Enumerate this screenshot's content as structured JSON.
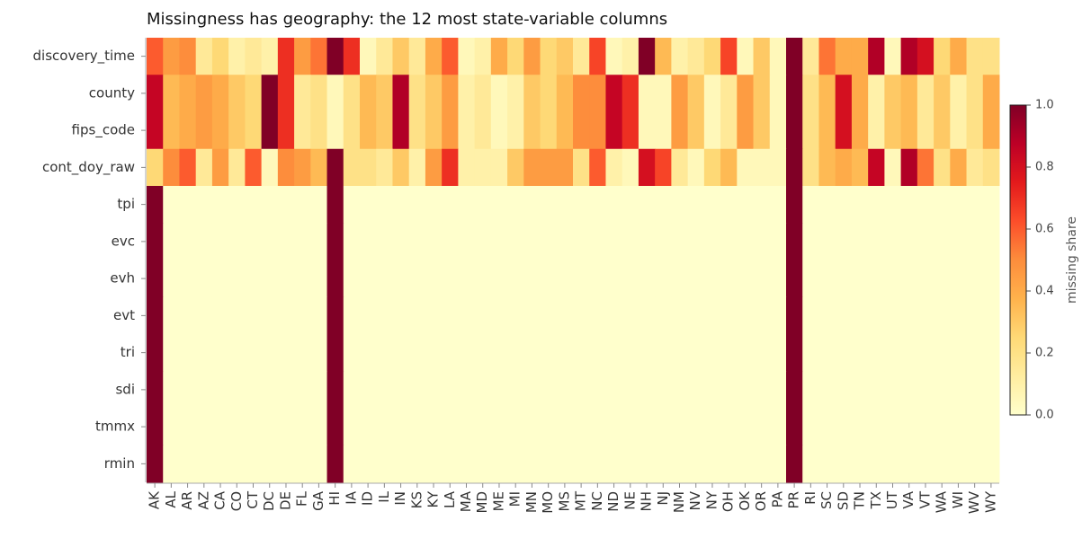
{
  "chart_data": {
    "type": "heatmap",
    "title": "Missingness has geography: the 12 most state-variable columns",
    "categories": [
      "AK",
      "AL",
      "AR",
      "AZ",
      "CA",
      "CO",
      "CT",
      "DC",
      "DE",
      "FL",
      "GA",
      "HI",
      "IA",
      "ID",
      "IL",
      "IN",
      "KS",
      "KY",
      "LA",
      "MA",
      "MD",
      "ME",
      "MI",
      "MN",
      "MO",
      "MS",
      "MT",
      "NC",
      "ND",
      "NE",
      "NH",
      "NJ",
      "NM",
      "NV",
      "NY",
      "OH",
      "OK",
      "OR",
      "PA",
      "PR",
      "RI",
      "SC",
      "SD",
      "TN",
      "TX",
      "UT",
      "VA",
      "VT",
      "WA",
      "WI",
      "WV",
      "WY"
    ],
    "rows": [
      "discovery_time",
      "county",
      "fips_code",
      "cont_doy_raw",
      "tpi",
      "evc",
      "evh",
      "evt",
      "tri",
      "sdi",
      "tmmx",
      "rmin"
    ],
    "values": [
      [
        0.6,
        0.45,
        0.5,
        0.15,
        0.25,
        0.1,
        0.15,
        0.1,
        0.7,
        0.45,
        0.55,
        1.0,
        0.7,
        0.05,
        0.15,
        0.3,
        0.15,
        0.4,
        0.6,
        0.05,
        0.1,
        0.4,
        0.25,
        0.45,
        0.25,
        0.3,
        0.15,
        0.65,
        0.05,
        0.1,
        1.0,
        0.35,
        0.1,
        0.15,
        0.25,
        0.65,
        0.05,
        0.3,
        0.05,
        1.0,
        0.15,
        0.55,
        0.4,
        0.4,
        0.9,
        0.05,
        0.9,
        0.8,
        0.25,
        0.4,
        0.2,
        0.2
      ],
      [
        0.85,
        0.35,
        0.4,
        0.45,
        0.4,
        0.3,
        0.25,
        1.0,
        0.7,
        0.15,
        0.2,
        0.05,
        0.2,
        0.35,
        0.3,
        0.9,
        0.2,
        0.3,
        0.45,
        0.1,
        0.15,
        0.05,
        0.1,
        0.3,
        0.25,
        0.35,
        0.5,
        0.5,
        0.85,
        0.7,
        0.05,
        0.05,
        0.45,
        0.3,
        0.05,
        0.15,
        0.45,
        0.3,
        0.05,
        1.0,
        0.2,
        0.35,
        0.8,
        0.4,
        0.1,
        0.3,
        0.35,
        0.15,
        0.3,
        0.1,
        0.2,
        0.4
      ],
      [
        0.85,
        0.35,
        0.4,
        0.45,
        0.4,
        0.3,
        0.25,
        1.0,
        0.7,
        0.15,
        0.2,
        0.05,
        0.2,
        0.35,
        0.3,
        0.9,
        0.2,
        0.3,
        0.45,
        0.1,
        0.15,
        0.05,
        0.1,
        0.3,
        0.25,
        0.35,
        0.5,
        0.5,
        0.85,
        0.7,
        0.05,
        0.05,
        0.45,
        0.3,
        0.05,
        0.15,
        0.45,
        0.3,
        0.05,
        1.0,
        0.2,
        0.35,
        0.8,
        0.4,
        0.1,
        0.3,
        0.35,
        0.15,
        0.3,
        0.1,
        0.2,
        0.4
      ],
      [
        0.25,
        0.5,
        0.6,
        0.15,
        0.45,
        0.15,
        0.6,
        0.05,
        0.5,
        0.45,
        0.35,
        1.0,
        0.2,
        0.2,
        0.15,
        0.3,
        0.1,
        0.45,
        0.7,
        0.1,
        0.1,
        0.1,
        0.3,
        0.45,
        0.45,
        0.45,
        0.2,
        0.6,
        0.1,
        0.05,
        0.8,
        0.65,
        0.15,
        0.05,
        0.25,
        0.35,
        0.05,
        0.05,
        0.05,
        1.0,
        0.2,
        0.35,
        0.4,
        0.35,
        0.85,
        0.05,
        0.9,
        0.55,
        0.2,
        0.4,
        0.15,
        0.2
      ],
      [
        1,
        0,
        0,
        0,
        0,
        0,
        0,
        0,
        0,
        0,
        0,
        1,
        0,
        0,
        0,
        0,
        0,
        0,
        0,
        0,
        0,
        0,
        0,
        0,
        0,
        0,
        0,
        0,
        0,
        0,
        0,
        0,
        0,
        0,
        0,
        0,
        0,
        0,
        0,
        1,
        0,
        0,
        0,
        0,
        0,
        0,
        0,
        0,
        0,
        0,
        0,
        0
      ],
      [
        1,
        0,
        0,
        0,
        0,
        0,
        0,
        0,
        0,
        0,
        0,
        1,
        0,
        0,
        0,
        0,
        0,
        0,
        0,
        0,
        0,
        0,
        0,
        0,
        0,
        0,
        0,
        0,
        0,
        0,
        0,
        0,
        0,
        0,
        0,
        0,
        0,
        0,
        0,
        1,
        0,
        0,
        0,
        0,
        0,
        0,
        0,
        0,
        0,
        0,
        0,
        0
      ],
      [
        1,
        0,
        0,
        0,
        0,
        0,
        0,
        0,
        0,
        0,
        0,
        1,
        0,
        0,
        0,
        0,
        0,
        0,
        0,
        0,
        0,
        0,
        0,
        0,
        0,
        0,
        0,
        0,
        0,
        0,
        0,
        0,
        0,
        0,
        0,
        0,
        0,
        0,
        0,
        1,
        0,
        0,
        0,
        0,
        0,
        0,
        0,
        0,
        0,
        0,
        0,
        0
      ],
      [
        1,
        0,
        0,
        0,
        0,
        0,
        0,
        0,
        0,
        0,
        0,
        1,
        0,
        0,
        0,
        0,
        0,
        0,
        0,
        0,
        0,
        0,
        0,
        0,
        0,
        0,
        0,
        0,
        0,
        0,
        0,
        0,
        0,
        0,
        0,
        0,
        0,
        0,
        0,
        1,
        0,
        0,
        0,
        0,
        0,
        0,
        0,
        0,
        0,
        0,
        0,
        0
      ],
      [
        1,
        0,
        0,
        0,
        0,
        0,
        0,
        0,
        0,
        0,
        0,
        1,
        0,
        0,
        0,
        0,
        0,
        0,
        0,
        0,
        0,
        0,
        0,
        0,
        0,
        0,
        0,
        0,
        0,
        0,
        0,
        0,
        0,
        0,
        0,
        0,
        0,
        0,
        0,
        1,
        0,
        0,
        0,
        0,
        0,
        0,
        0,
        0,
        0,
        0,
        0,
        0
      ],
      [
        1,
        0,
        0,
        0,
        0,
        0,
        0,
        0,
        0,
        0,
        0,
        1,
        0,
        0,
        0,
        0,
        0,
        0,
        0,
        0,
        0,
        0,
        0,
        0,
        0,
        0,
        0,
        0,
        0,
        0,
        0,
        0,
        0,
        0,
        0,
        0,
        0,
        0,
        0,
        1,
        0,
        0,
        0,
        0,
        0,
        0,
        0,
        0,
        0,
        0,
        0,
        0
      ],
      [
        1,
        0,
        0,
        0,
        0,
        0,
        0,
        0,
        0,
        0,
        0,
        1,
        0,
        0,
        0,
        0,
        0,
        0,
        0,
        0,
        0,
        0,
        0,
        0,
        0,
        0,
        0,
        0,
        0,
        0,
        0,
        0,
        0,
        0,
        0,
        0,
        0,
        0,
        0,
        1,
        0,
        0,
        0,
        0,
        0,
        0,
        0,
        0,
        0,
        0,
        0,
        0
      ],
      [
        1,
        0,
        0,
        0,
        0,
        0,
        0,
        0,
        0,
        0,
        0,
        1,
        0,
        0,
        0,
        0,
        0,
        0,
        0,
        0,
        0,
        0,
        0,
        0,
        0,
        0,
        0,
        0,
        0,
        0,
        0,
        0,
        0,
        0,
        0,
        0,
        0,
        0,
        0,
        1,
        0,
        0,
        0,
        0,
        0,
        0,
        0,
        0,
        0,
        0,
        0,
        0
      ]
    ],
    "colormap": "YlOrRd",
    "clim": [
      0,
      1
    ],
    "cticks": [
      {
        "value": 0,
        "label": "0.0"
      },
      0.2,
      0.4,
      0.6,
      0.8,
      {
        "value": 1,
        "label": "1.0"
      }
    ],
    "colorbar_label": "missing share"
  }
}
